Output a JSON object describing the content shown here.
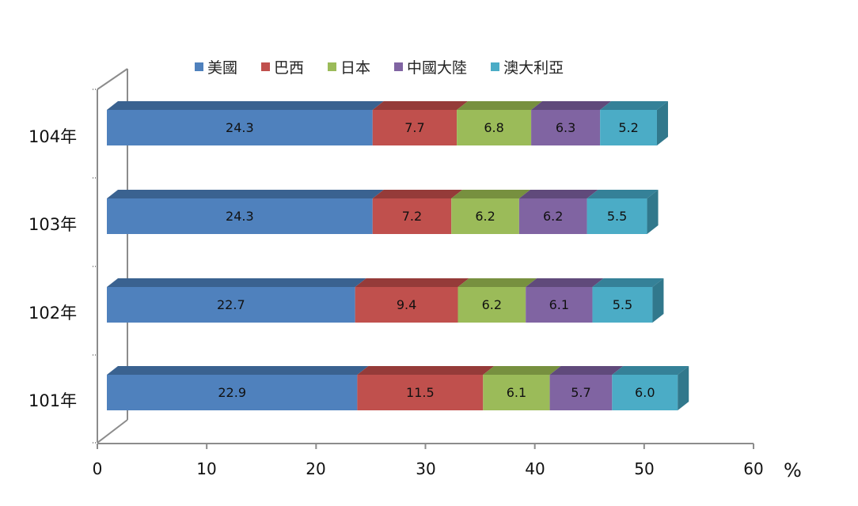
{
  "chart_data": {
    "type": "bar",
    "orientation": "horizontal",
    "stacked": true,
    "style": "3d",
    "title": "",
    "xlabel": "%",
    "ylabel": "",
    "xlim": [
      0,
      60
    ],
    "x_ticks": [
      "0",
      "10",
      "20",
      "30",
      "40",
      "50",
      "60"
    ],
    "categories": [
      "104年",
      "103年",
      "102年",
      "101年"
    ],
    "series": [
      {
        "name": "美國",
        "color": "#4F81BD",
        "top": "#3A6290",
        "values": [
          24.3,
          24.3,
          22.7,
          22.9
        ]
      },
      {
        "name": "巴西",
        "color": "#C0504D",
        "top": "#953B39",
        "values": [
          7.7,
          7.2,
          9.4,
          11.5
        ]
      },
      {
        "name": "日本",
        "color": "#9BBB59",
        "top": "#77903F",
        "values": [
          6.8,
          6.2,
          6.2,
          6.1
        ]
      },
      {
        "name": "中國大陸",
        "color": "#8064A2",
        "top": "#604A7B",
        "values": [
          6.3,
          6.2,
          6.1,
          5.7
        ]
      },
      {
        "name": "澳大利亞",
        "color": "#4BACC6",
        "top": "#358198",
        "side": "#31788C",
        "values": [
          5.2,
          5.5,
          5.5,
          6.0
        ]
      }
    ],
    "legend_position": "top",
    "grid": false,
    "data_labels": true
  },
  "legend": [
    "美國",
    "巴西",
    "日本",
    "中國大陸",
    "澳大利亞"
  ],
  "axis": {
    "y_labels": [
      "104年",
      "103年",
      "102年",
      "101年"
    ],
    "x_labels": [
      "0",
      "10",
      "20",
      "30",
      "40",
      "50",
      "60"
    ],
    "unit": "%"
  }
}
